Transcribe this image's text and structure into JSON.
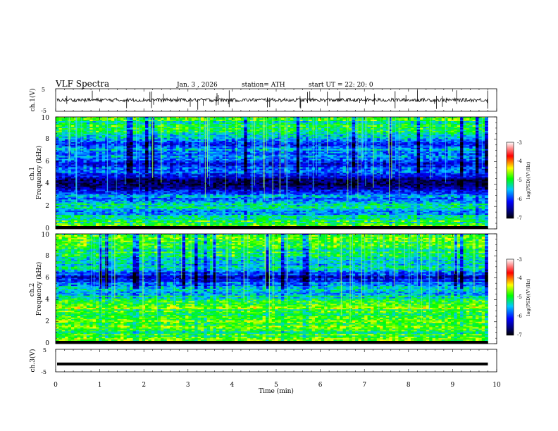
{
  "header": {
    "title": "VLF  Spectra",
    "date": "Jan.  3   ,  2026",
    "station": "station= ATH",
    "start": "start  UT  =    22: 20: 0"
  },
  "chart_data": [
    {
      "type": "line",
      "panel": "ch1-waveform",
      "ylabel": "ch.1(V)",
      "ylim": [
        -5,
        5
      ],
      "yticks": [
        "5",
        "-5"
      ],
      "xlim": [
        0,
        10
      ],
      "data_end": 9.8,
      "baseline": 0.0
    },
    {
      "type": "heatmap",
      "panel": "ch1-spectrogram",
      "ylabel": "ch.1\nFrequency  (kHz)",
      "ylim": [
        0,
        10
      ],
      "yticks": [
        "0",
        "2",
        "4",
        "6",
        "8",
        "10"
      ],
      "xlim": [
        0,
        10
      ],
      "data_end": 9.8,
      "profile": [
        [
          0.0,
          -4.8
        ],
        [
          0.5,
          -4.9
        ],
        [
          1.0,
          -5.3
        ],
        [
          1.5,
          -5.6
        ],
        [
          2.0,
          -5.1
        ],
        [
          2.5,
          -5.6
        ],
        [
          3.0,
          -5.7
        ],
        [
          3.4,
          -6.3
        ],
        [
          3.9,
          -6.6
        ],
        [
          4.3,
          -6.6
        ],
        [
          4.8,
          -6.0
        ],
        [
          5.3,
          -5.6
        ],
        [
          5.8,
          -6.1
        ],
        [
          6.3,
          -5.8
        ],
        [
          7.0,
          -5.6
        ],
        [
          7.5,
          -5.9
        ],
        [
          8.0,
          -5.7
        ],
        [
          8.5,
          -5.3
        ],
        [
          9.0,
          -5.1
        ],
        [
          10.0,
          -5.0
        ]
      ],
      "colorbar": {
        "label": "log(PSD)(V²/Hz)",
        "min": -7,
        "max": -3,
        "ticks": [
          "-3",
          "-4",
          "-5",
          "-6",
          "-7"
        ]
      }
    },
    {
      "type": "heatmap",
      "panel": "ch2-spectrogram",
      "ylabel": "ch.2\nFrequency  (kHz)",
      "ylim": [
        0,
        10
      ],
      "yticks": [
        "0",
        "2",
        "4",
        "6",
        "8",
        "10"
      ],
      "xlim": [
        0,
        10
      ],
      "data_end": 9.8,
      "profile": [
        [
          0.0,
          -4.7
        ],
        [
          0.5,
          -4.8
        ],
        [
          1.0,
          -5.0
        ],
        [
          1.5,
          -4.9
        ],
        [
          2.0,
          -4.6
        ],
        [
          2.5,
          -5.1
        ],
        [
          3.0,
          -5.0
        ],
        [
          3.5,
          -4.5
        ],
        [
          4.0,
          -5.2
        ],
        [
          4.5,
          -5.4
        ],
        [
          5.0,
          -5.6
        ],
        [
          5.5,
          -5.8
        ],
        [
          6.0,
          -6.4
        ],
        [
          6.5,
          -5.8
        ],
        [
          7.0,
          -5.4
        ],
        [
          7.5,
          -5.3
        ],
        [
          8.0,
          -5.2
        ],
        [
          8.5,
          -5.1
        ],
        [
          9.0,
          -5.0
        ],
        [
          10.0,
          -4.9
        ]
      ],
      "colorbar": {
        "label": "log(PSD)(V²/Hz)",
        "min": -7,
        "max": -3,
        "ticks": [
          "-3",
          "-4",
          "-5",
          "-6",
          "-7"
        ]
      }
    },
    {
      "type": "line",
      "panel": "ch3-waveform",
      "ylabel": "ch.3(V)",
      "ylim": [
        -5,
        5
      ],
      "yticks": [
        "5",
        "-5"
      ],
      "xlim": [
        0,
        10
      ],
      "data_end": 9.8,
      "baseline": -1.5
    }
  ],
  "xaxis": {
    "label": "Time  (min)",
    "ticks": [
      "0",
      "1",
      "2",
      "3",
      "4",
      "5",
      "6",
      "7",
      "8",
      "9",
      "10"
    ]
  },
  "colorbar_label": "log(PSD)(V²/Hz)",
  "colors": {
    "colormap": [
      "#000000",
      "#0000ff",
      "#00c8ff",
      "#00ff00",
      "#ffff00",
      "#ff0000",
      "#ffffff"
    ]
  }
}
